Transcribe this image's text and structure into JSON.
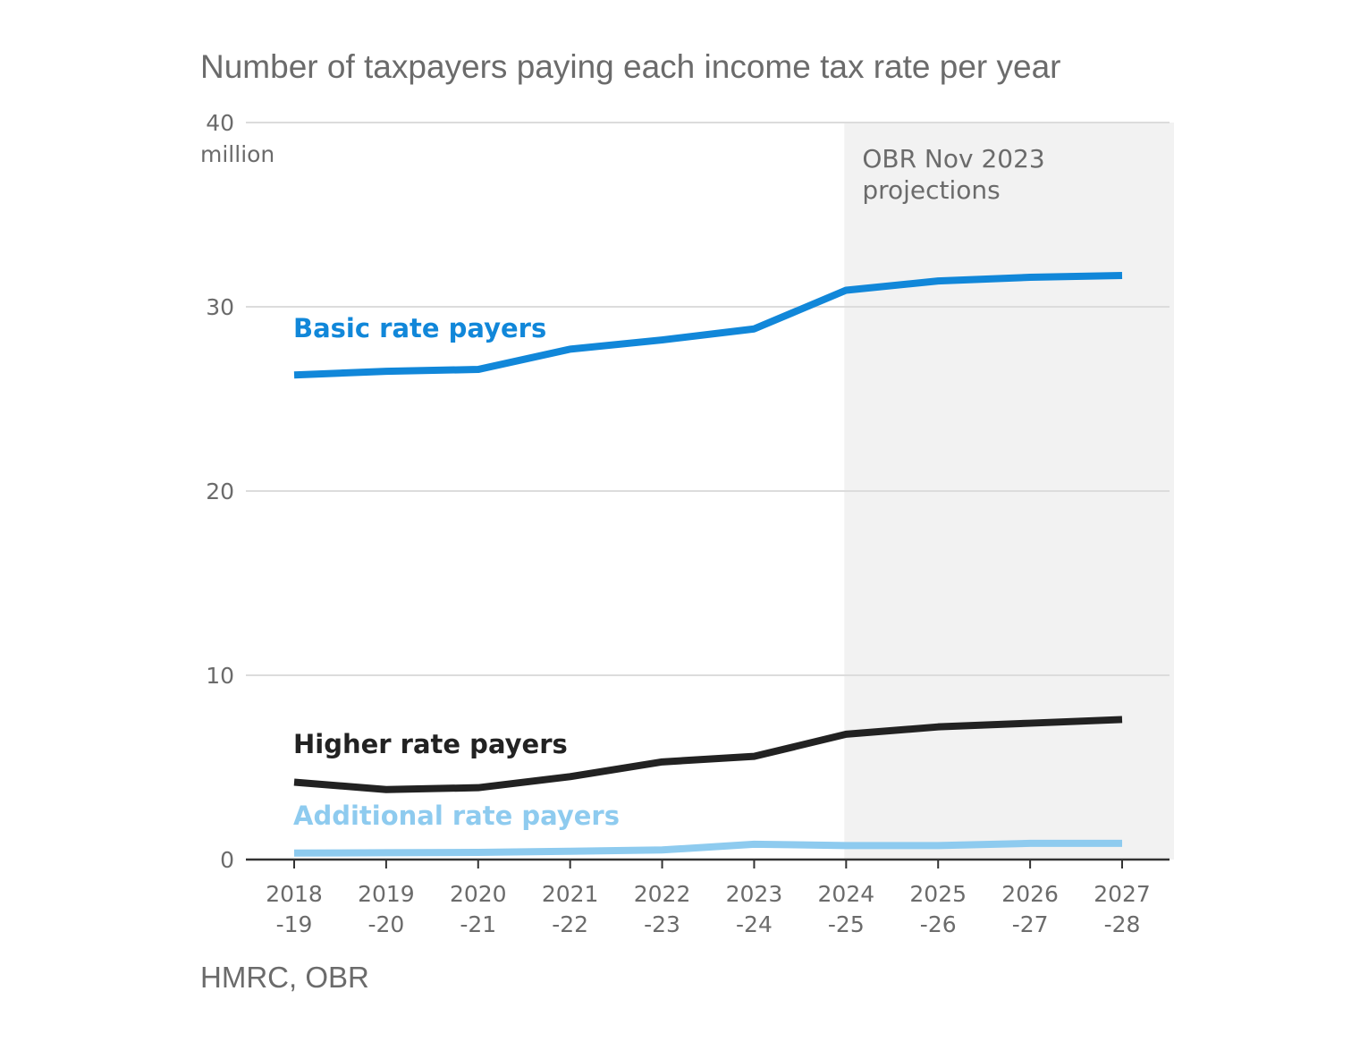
{
  "chart_data": {
    "type": "line",
    "title": "Number of taxpayers paying each income tax rate per year",
    "source": "HMRC, OBR",
    "y_unit": "million",
    "ylim": [
      0,
      40
    ],
    "y_ticks": [
      0,
      10,
      20,
      30,
      40
    ],
    "categories": [
      "2018-19",
      "2019-20",
      "2020-21",
      "2021-22",
      "2022-23",
      "2023-24",
      "2024-25",
      "2025-26",
      "2026-27",
      "2027-28"
    ],
    "category_labels": [
      [
        "2018",
        "-19"
      ],
      [
        "2019",
        "-20"
      ],
      [
        "2020",
        "-21"
      ],
      [
        "2021",
        "-22"
      ],
      [
        "2022",
        "-23"
      ],
      [
        "2023",
        "-24"
      ],
      [
        "2024",
        "-25"
      ],
      [
        "2025",
        "-26"
      ],
      [
        "2026",
        "-27"
      ],
      [
        "2027",
        "-28"
      ]
    ],
    "projection": {
      "label_lines": [
        "OBR Nov 2023",
        "projections"
      ],
      "from_category": "2024-25",
      "shade_color": "#f2f2f2"
    },
    "grid": true,
    "series": [
      {
        "name": "Basic rate payers",
        "color": "#1187d9",
        "values": [
          26.3,
          26.5,
          26.6,
          27.7,
          28.2,
          28.8,
          30.9,
          31.4,
          31.6,
          31.7
        ]
      },
      {
        "name": "Higher rate payers",
        "color": "#222222",
        "values": [
          4.2,
          3.8,
          3.9,
          4.5,
          5.3,
          5.6,
          6.8,
          7.2,
          7.4,
          7.6
        ]
      },
      {
        "name": "Additional rate payers",
        "color": "#8ecbef",
        "values": [
          0.35,
          0.37,
          0.39,
          0.45,
          0.52,
          0.83,
          0.76,
          0.76,
          0.88,
          0.88
        ]
      }
    ]
  }
}
